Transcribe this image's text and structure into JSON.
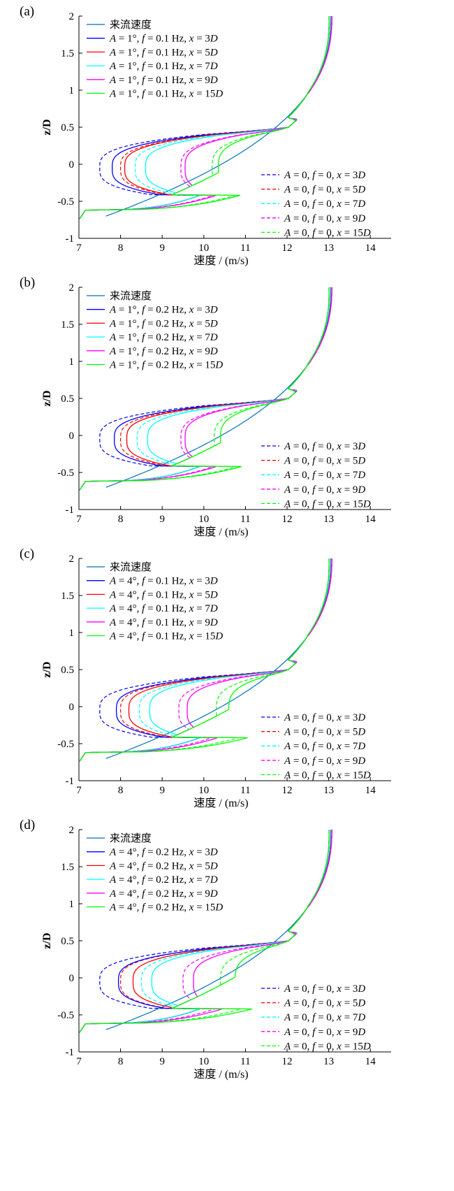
{
  "colors": {
    "inflow": "#0072BD",
    "x3D": "#0000FF",
    "x5D": "#FF0000",
    "x7D": "#00FFFF",
    "x9D": "#FF00FF",
    "x15D": "#00FF00"
  },
  "chart_data": [
    {
      "panel": "(a)",
      "type": "line",
      "xlabel": "速度 / (m/s)",
      "ylabel": "z/D",
      "xlim": [
        7,
        14.5
      ],
      "ylim": [
        -1,
        2
      ],
      "xticks": [
        7,
        8,
        9,
        10,
        11,
        12,
        13,
        14
      ],
      "yticks": [
        -1,
        -0.5,
        0,
        0.5,
        1,
        1.5,
        2
      ],
      "legend_main_title": "来流速度",
      "legend_main": [
        {
          "A": "1°",
          "f": "0.1",
          "x": "3"
        },
        {
          "A": "1°",
          "f": "0.1",
          "x": "5"
        },
        {
          "A": "1°",
          "f": "0.1",
          "x": "7"
        },
        {
          "A": "1°",
          "f": "0.1",
          "x": "9"
        },
        {
          "A": "1°",
          "f": "0.1",
          "x": "15"
        }
      ],
      "legend_base": [
        "3",
        "5",
        "7",
        "9",
        "15"
      ],
      "solid_min": [
        7.8,
        8.1,
        8.6,
        9.55,
        10.35
      ],
      "dashed_min": [
        7.5,
        8.0,
        8.35,
        9.45,
        10.2
      ]
    },
    {
      "panel": "(b)",
      "type": "line",
      "xlabel": "速度 / (m/s)",
      "ylabel": "z/D",
      "xlim": [
        7,
        14.5
      ],
      "ylim": [
        -1,
        2
      ],
      "xticks": [
        7,
        8,
        9,
        10,
        11,
        12,
        13,
        14
      ],
      "yticks": [
        -1,
        -0.5,
        0,
        0.5,
        1,
        1.5,
        2
      ],
      "legend_main_title": "来流速度",
      "legend_main": [
        {
          "A": "1°",
          "f": "0.2",
          "x": "3"
        },
        {
          "A": "1°",
          "f": "0.2",
          "x": "5"
        },
        {
          "A": "1°",
          "f": "0.2",
          "x": "7"
        },
        {
          "A": "1°",
          "f": "0.2",
          "x": "9"
        },
        {
          "A": "1°",
          "f": "0.2",
          "x": "15"
        }
      ],
      "legend_base": [
        "3",
        "5",
        "7",
        "9",
        "15"
      ],
      "solid_min": [
        7.85,
        8.15,
        8.65,
        9.55,
        10.4
      ],
      "dashed_min": [
        7.5,
        8.0,
        8.4,
        9.45,
        10.25
      ]
    },
    {
      "panel": "(c)",
      "type": "line",
      "xlabel": "速度 / (m/s)",
      "ylabel": "z/D",
      "xlim": [
        7,
        14.5
      ],
      "ylim": [
        -1,
        2
      ],
      "xticks": [
        7,
        8,
        9,
        10,
        11,
        12,
        13,
        14
      ],
      "yticks": [
        -1,
        -0.5,
        0,
        0.5,
        1,
        1.5,
        2
      ],
      "legend_main_title": "来流速度",
      "legend_main": [
        {
          "A": "4°",
          "f": "0.1",
          "x": "3"
        },
        {
          "A": "4°",
          "f": "0.1",
          "x": "5"
        },
        {
          "A": "4°",
          "f": "0.1",
          "x": "7"
        },
        {
          "A": "4°",
          "f": "0.1",
          "x": "9"
        },
        {
          "A": "4°",
          "f": "0.1",
          "x": "15"
        }
      ],
      "legend_base": [
        "3",
        "5",
        "7",
        "9",
        "15"
      ],
      "solid_min": [
        7.9,
        8.2,
        8.7,
        9.6,
        10.6
      ],
      "dashed_min": [
        7.5,
        8.0,
        8.45,
        9.4,
        10.3
      ]
    },
    {
      "panel": "(d)",
      "type": "line",
      "xlabel": "速度 / (m/s)",
      "ylabel": "z/D",
      "xlim": [
        7,
        14.5
      ],
      "ylim": [
        -1,
        2
      ],
      "xticks": [
        7,
        8,
        9,
        10,
        11,
        12,
        13,
        14
      ],
      "yticks": [
        -1,
        -0.5,
        0,
        0.5,
        1,
        1.5,
        2
      ],
      "legend_main_title": "来流速度",
      "legend_main": [
        {
          "A": "4°",
          "f": "0.2",
          "x": "3"
        },
        {
          "A": "4°",
          "f": "0.2",
          "x": "5"
        },
        {
          "A": "4°",
          "f": "0.2",
          "x": "7"
        },
        {
          "A": "4°",
          "f": "0.2",
          "x": "9"
        },
        {
          "A": "4°",
          "f": "0.2",
          "x": "15"
        }
      ],
      "legend_base": [
        "3",
        "5",
        "7",
        "9",
        "15"
      ],
      "solid_min": [
        7.95,
        8.3,
        8.75,
        9.75,
        10.75
      ],
      "dashed_min": [
        7.5,
        8.0,
        8.5,
        9.5,
        10.4
      ]
    }
  ]
}
